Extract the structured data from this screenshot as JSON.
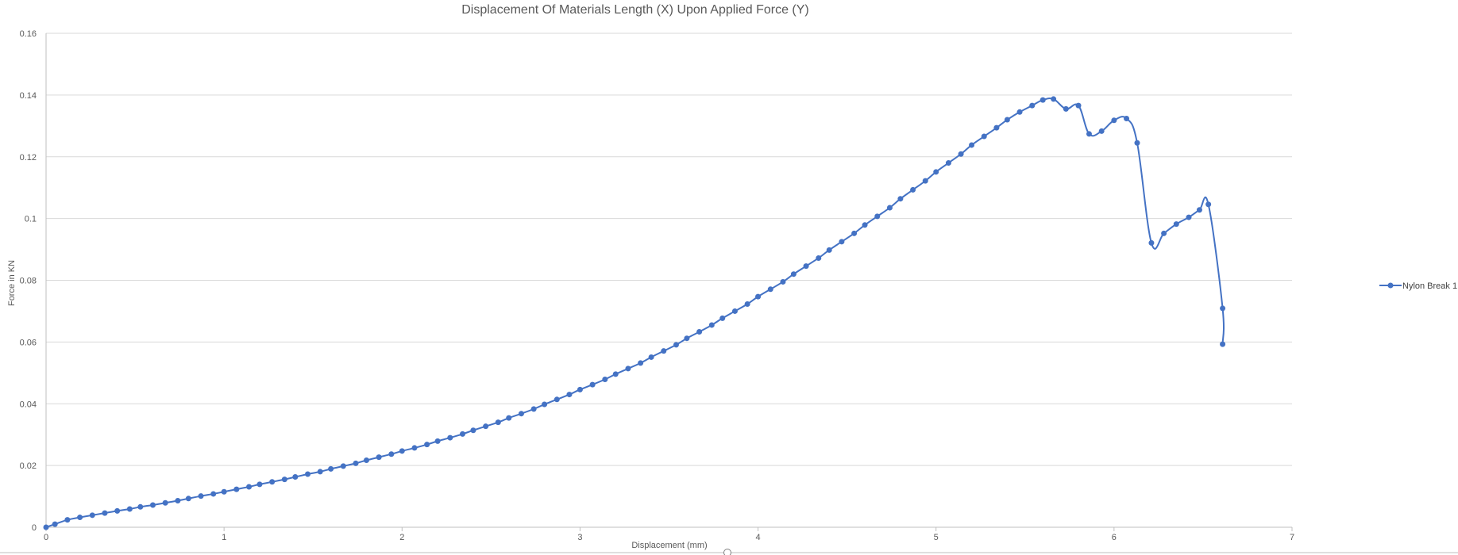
{
  "chart_data": {
    "type": "scatter",
    "title": "Displacement Of Materials Length (X) Upon Applied Force (Y)",
    "xlabel": "Displacement (mm)",
    "ylabel": "Force in KN",
    "xlim": [
      0,
      7
    ],
    "ylim": [
      0,
      0.16
    ],
    "x_ticks": [
      "0",
      "1",
      "2",
      "3",
      "4",
      "5",
      "6",
      "7"
    ],
    "y_ticks": [
      "0",
      "0.02",
      "0.04",
      "0.06",
      "0.08",
      "0.1",
      "0.12",
      "0.14",
      "0.16"
    ],
    "grid": true,
    "smooth_lines": true,
    "markers": true,
    "legend_position": "right",
    "series": [
      {
        "name": "Nylon Break 1",
        "color": "#4472C4",
        "points": [
          [
            0.0,
            0.0
          ],
          [
            0.05,
            0.001
          ],
          [
            0.12,
            0.0024
          ],
          [
            0.19,
            0.0032
          ],
          [
            0.26,
            0.0039
          ],
          [
            0.33,
            0.0046
          ],
          [
            0.4,
            0.0053
          ],
          [
            0.47,
            0.0059
          ],
          [
            0.53,
            0.0066
          ],
          [
            0.6,
            0.0072
          ],
          [
            0.67,
            0.0079
          ],
          [
            0.74,
            0.0086
          ],
          [
            0.8,
            0.0093
          ],
          [
            0.87,
            0.0101
          ],
          [
            0.94,
            0.0108
          ],
          [
            1.0,
            0.0115
          ],
          [
            1.07,
            0.0123
          ],
          [
            1.14,
            0.0131
          ],
          [
            1.2,
            0.0139
          ],
          [
            1.27,
            0.0147
          ],
          [
            1.34,
            0.0155
          ],
          [
            1.4,
            0.0163
          ],
          [
            1.47,
            0.0172
          ],
          [
            1.54,
            0.018
          ],
          [
            1.6,
            0.0189
          ],
          [
            1.67,
            0.0198
          ],
          [
            1.74,
            0.0207
          ],
          [
            1.8,
            0.0217
          ],
          [
            1.87,
            0.0227
          ],
          [
            1.94,
            0.0237
          ],
          [
            2.0,
            0.0247
          ],
          [
            2.07,
            0.0257
          ],
          [
            2.14,
            0.0268
          ],
          [
            2.2,
            0.0279
          ],
          [
            2.27,
            0.029
          ],
          [
            2.34,
            0.0302
          ],
          [
            2.4,
            0.0314
          ],
          [
            2.47,
            0.0327
          ],
          [
            2.54,
            0.034
          ],
          [
            2.6,
            0.0354
          ],
          [
            2.67,
            0.0368
          ],
          [
            2.74,
            0.0383
          ],
          [
            2.8,
            0.0398
          ],
          [
            2.87,
            0.0414
          ],
          [
            2.94,
            0.043
          ],
          [
            3.0,
            0.0446
          ],
          [
            3.07,
            0.0462
          ],
          [
            3.14,
            0.0479
          ],
          [
            3.2,
            0.0496
          ],
          [
            3.27,
            0.0514
          ],
          [
            3.34,
            0.0532
          ],
          [
            3.4,
            0.0551
          ],
          [
            3.47,
            0.0571
          ],
          [
            3.54,
            0.0591
          ],
          [
            3.6,
            0.0612
          ],
          [
            3.67,
            0.0633
          ],
          [
            3.74,
            0.0655
          ],
          [
            3.8,
            0.0677
          ],
          [
            3.87,
            0.07
          ],
          [
            3.94,
            0.0723
          ],
          [
            4.0,
            0.0747
          ],
          [
            4.07,
            0.0771
          ],
          [
            4.14,
            0.0795
          ],
          [
            4.2,
            0.082
          ],
          [
            4.27,
            0.0846
          ],
          [
            4.34,
            0.0872
          ],
          [
            4.4,
            0.0898
          ],
          [
            4.47,
            0.0925
          ],
          [
            4.54,
            0.0952
          ],
          [
            4.6,
            0.0979
          ],
          [
            4.67,
            0.1007
          ],
          [
            4.74,
            0.1035
          ],
          [
            4.8,
            0.1064
          ],
          [
            4.87,
            0.1093
          ],
          [
            4.94,
            0.1122
          ],
          [
            5.0,
            0.1151
          ],
          [
            5.07,
            0.118
          ],
          [
            5.14,
            0.1209
          ],
          [
            5.2,
            0.1238
          ],
          [
            5.27,
            0.1266
          ],
          [
            5.34,
            0.1294
          ],
          [
            5.4,
            0.132
          ],
          [
            5.47,
            0.1345
          ],
          [
            5.54,
            0.1366
          ],
          [
            5.6,
            0.1384
          ],
          [
            5.66,
            0.1387
          ],
          [
            5.73,
            0.1355
          ],
          [
            5.8,
            0.1366
          ],
          [
            5.86,
            0.1274
          ],
          [
            5.93,
            0.1283
          ],
          [
            6.0,
            0.1318
          ],
          [
            6.07,
            0.1324
          ],
          [
            6.13,
            0.1245
          ],
          [
            6.21,
            0.0921
          ],
          [
            6.28,
            0.0952
          ],
          [
            6.35,
            0.0982
          ],
          [
            6.42,
            0.1004
          ],
          [
            6.48,
            0.1028
          ],
          [
            6.53,
            0.1046
          ],
          [
            6.61,
            0.0709
          ],
          [
            6.61,
            0.0593
          ]
        ]
      }
    ]
  }
}
